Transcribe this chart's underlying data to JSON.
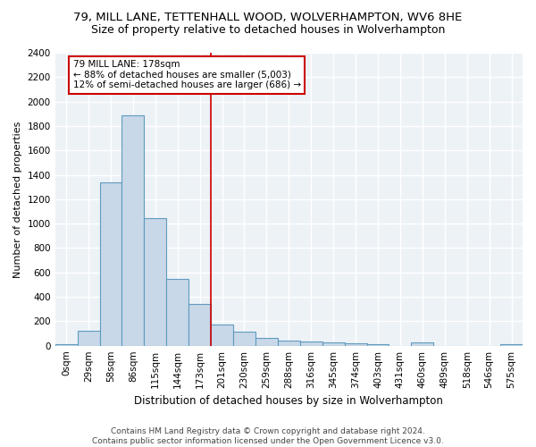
{
  "title1": "79, MILL LANE, TETTENHALL WOOD, WOLVERHAMPTON, WV6 8HE",
  "title2": "Size of property relative to detached houses in Wolverhampton",
  "xlabel": "Distribution of detached houses by size in Wolverhampton",
  "ylabel": "Number of detached properties",
  "categories": [
    "0sqm",
    "29sqm",
    "58sqm",
    "86sqm",
    "115sqm",
    "144sqm",
    "173sqm",
    "201sqm",
    "230sqm",
    "259sqm",
    "288sqm",
    "316sqm",
    "345sqm",
    "374sqm",
    "403sqm",
    "431sqm",
    "460sqm",
    "489sqm",
    "518sqm",
    "546sqm",
    "575sqm"
  ],
  "values": [
    15,
    125,
    1340,
    1890,
    1045,
    545,
    340,
    170,
    115,
    65,
    45,
    35,
    28,
    20,
    15,
    0,
    25,
    0,
    0,
    0,
    15
  ],
  "bar_color": "#c8d8e8",
  "bar_edge_color": "#5f9bc0",
  "vline_x": 6.5,
  "annotation_text1": "79 MILL LANE: 178sqm",
  "annotation_text2": "← 88% of detached houses are smaller (5,003)",
  "annotation_text3": "12% of semi-detached houses are larger (686) →",
  "annotation_color": "#cc0000",
  "ylim": [
    0,
    2400
  ],
  "yticks": [
    0,
    200,
    400,
    600,
    800,
    1000,
    1200,
    1400,
    1600,
    1800,
    2000,
    2200,
    2400
  ],
  "footer1": "Contains HM Land Registry data © Crown copyright and database right 2024.",
  "footer2": "Contains public sector information licensed under the Open Government Licence v3.0.",
  "bg_color": "#edf2f7",
  "grid_color": "#ffffff",
  "title1_fontsize": 9.5,
  "title2_fontsize": 9,
  "xlabel_fontsize": 8.5,
  "ylabel_fontsize": 8,
  "tick_fontsize": 7.5,
  "footer_fontsize": 6.5,
  "ann_fontsize": 7.5
}
